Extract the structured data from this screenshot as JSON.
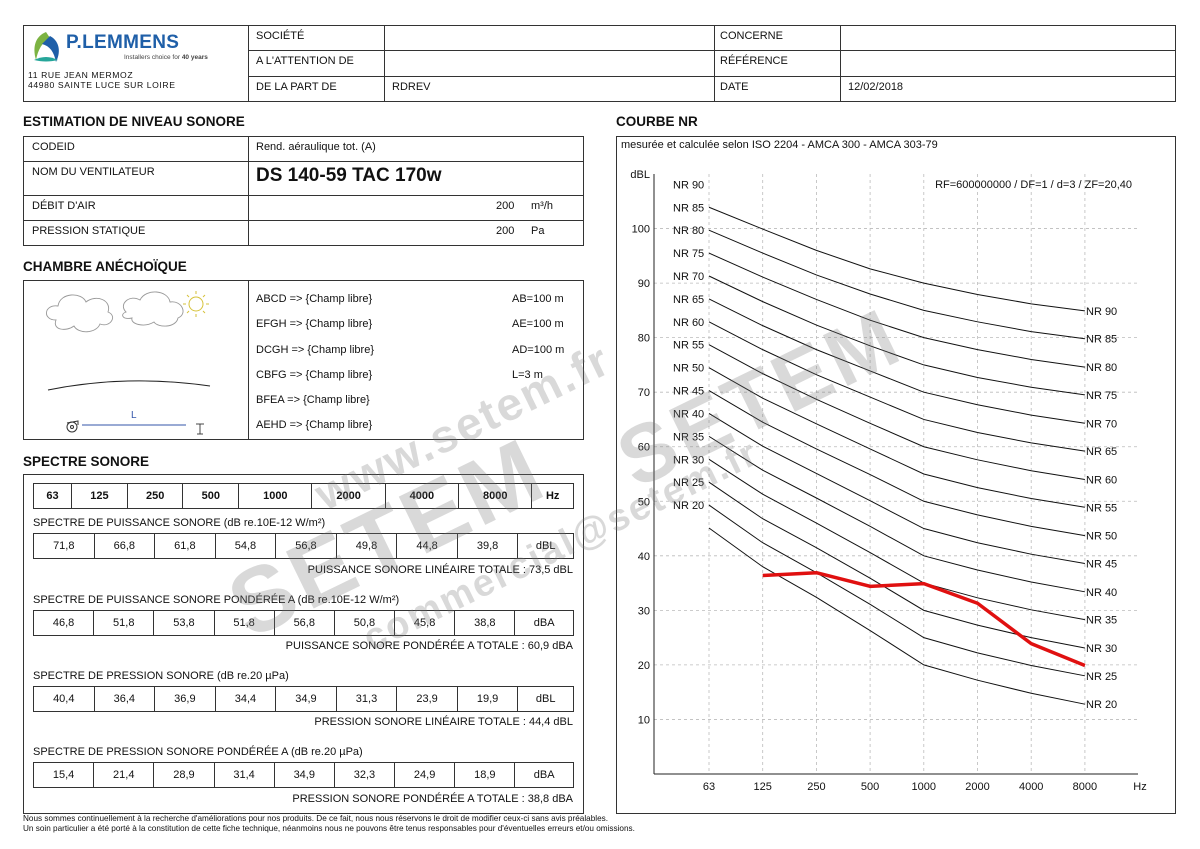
{
  "header": {
    "company_name": "P.LEMMENS",
    "tagline_prefix": "Installers choice for",
    "tagline_bold": "40 years",
    "address_line1": "11 RUE JEAN MERMOZ",
    "address_line2": "44980 SAINTE LUCE SUR LOIRE",
    "fields": {
      "societe_label": "SOCIÉTÉ",
      "societe_value": "",
      "attention_label": "A L'ATTENTION DE",
      "attention_value": "",
      "partde_label": "DE LA PART DE",
      "partde_value": "RDREV",
      "concerne_label": "CONCERNE",
      "concerne_value": "",
      "reference_label": "RÉFÉRENCE",
      "reference_value": "",
      "date_label": "DATE",
      "date_value": "12/02/2018"
    }
  },
  "estimation": {
    "title": "ESTIMATION DE NIVEAU SONORE",
    "codeid_label": "CODEID",
    "codeid_value": "Rend. aéraulique tot. (A)",
    "fan_label": "NOM DU VENTILATEUR",
    "fan_value": "DS 140-59 TAC 170w",
    "airflow_label": "DÉBIT D'AIR",
    "airflow_value": "200",
    "airflow_unit": "m³/h",
    "pressure_label": "PRESSION STATIQUE",
    "pressure_value": "200",
    "pressure_unit": "Pa"
  },
  "chamber": {
    "title": "CHAMBRE ANÉCHOÏQUE",
    "diagram_label": "L",
    "rows": [
      {
        "left": "ABCD => {Champ libre}",
        "right": "AB=100 m"
      },
      {
        "left": "EFGH => {Champ libre}",
        "right": "AE=100 m"
      },
      {
        "left": "DCGH => {Champ libre}",
        "right": "AD=100 m"
      },
      {
        "left": "CBFG => {Champ libre}",
        "right": "L=3 m"
      },
      {
        "left": "BFEA => {Champ libre}",
        "right": ""
      },
      {
        "left": "AEHD => {Champ libre}",
        "right": ""
      }
    ]
  },
  "spectrum": {
    "title": "SPECTRE SONORE",
    "frequencies": [
      "63",
      "125",
      "250",
      "500",
      "1000",
      "2000",
      "4000",
      "8000",
      "Hz"
    ],
    "sections": [
      {
        "label": "SPECTRE DE PUISSANCE SONORE  (dB re.10E-12 W/m²)",
        "values": [
          "71,8",
          "66,8",
          "61,8",
          "54,8",
          "56,8",
          "49,8",
          "44,8",
          "39,8",
          "dBL"
        ],
        "total": "PUISSANCE SONORE LINÉAIRE TOTALE : 73,5 dBL"
      },
      {
        "label": "SPECTRE DE PUISSANCE SONORE PONDÉRÉE A  (dB re.10E-12 W/m²)",
        "values": [
          "46,8",
          "51,8",
          "53,8",
          "51,8",
          "56,8",
          "50,8",
          "45,8",
          "38,8",
          "dBA"
        ],
        "total": "PUISSANCE SONORE PONDÉRÉE A TOTALE : 60,9 dBA"
      },
      {
        "label": "SPECTRE DE PRESSION SONORE  (dB re.20 µPa)",
        "values": [
          "40,4",
          "36,4",
          "36,9",
          "34,4",
          "34,9",
          "31,3",
          "23,9",
          "19,9",
          "dBL"
        ],
        "total": "PRESSION SONORE LINÉAIRE TOTALE : 44,4 dBL"
      },
      {
        "label": "SPECTRE DE PRESSION SONORE PONDÉRÉE A  (dB re.20 µPa)",
        "values": [
          "15,4",
          "21,4",
          "28,9",
          "31,4",
          "34,9",
          "32,3",
          "24,9",
          "18,9",
          "dBA"
        ],
        "total": "PRESSION SONORE PONDÉRÉE A TOTALE : 38,8 dBA"
      }
    ]
  },
  "nr_curve": {
    "title": "COURBE NR",
    "subtitle": "mesurée et calculée selon ISO 2204 - AMCA 300 - AMCA 303-79"
  },
  "chart_data": {
    "type": "line",
    "ylabel": "dBL",
    "xlabel": "Hz",
    "ylim": [
      0,
      110
    ],
    "categories": [
      "63",
      "125",
      "250",
      "500",
      "1000",
      "2000",
      "4000",
      "8000"
    ],
    "yticks": [
      10,
      20,
      30,
      40,
      50,
      60,
      70,
      80,
      90,
      100
    ],
    "annotation": "RF=600000000  /  DF=1  /  d=3  /  ZF=20,40",
    "nr_curves": [
      {
        "name": "NR 90",
        "values": [
          103.9,
          99.9,
          96.0,
          92.6,
          90.0,
          87.9,
          86.2,
          84.9
        ]
      },
      {
        "name": "NR 85",
        "values": [
          99.7,
          95.5,
          91.5,
          88.0,
          85.0,
          82.9,
          81.1,
          79.8
        ]
      },
      {
        "name": "NR 80",
        "values": [
          95.5,
          91.1,
          87.0,
          83.2,
          80.0,
          77.8,
          76.0,
          74.6
        ]
      },
      {
        "name": "NR 75",
        "values": [
          91.3,
          86.6,
          82.3,
          78.5,
          75.0,
          72.7,
          70.9,
          69.5
        ]
      },
      {
        "name": "NR 70",
        "values": [
          87.1,
          82.2,
          77.8,
          73.9,
          70.0,
          67.7,
          65.8,
          64.3
        ]
      },
      {
        "name": "NR 65",
        "values": [
          82.9,
          77.8,
          73.2,
          69.1,
          65.0,
          62.6,
          60.7,
          59.2
        ]
      },
      {
        "name": "NR 60",
        "values": [
          78.7,
          73.4,
          68.7,
          64.3,
          60.0,
          57.6,
          55.6,
          54.0
        ]
      },
      {
        "name": "NR 55",
        "values": [
          74.5,
          68.9,
          64.2,
          59.6,
          55.0,
          52.5,
          50.5,
          48.9
        ]
      },
      {
        "name": "NR 50",
        "values": [
          70.3,
          64.5,
          59.6,
          54.9,
          50.0,
          47.5,
          45.4,
          43.7
        ]
      },
      {
        "name": "NR 45",
        "values": [
          66.1,
          60.1,
          55.1,
          50.1,
          45.0,
          42.4,
          40.3,
          38.6
        ]
      },
      {
        "name": "NR 40",
        "values": [
          61.9,
          55.7,
          50.6,
          45.4,
          40.0,
          37.4,
          35.2,
          33.4
        ]
      },
      {
        "name": "NR 35",
        "values": [
          57.7,
          51.3,
          46.0,
          40.6,
          35.0,
          32.3,
          30.1,
          28.3
        ]
      },
      {
        "name": "NR 30",
        "values": [
          53.5,
          46.8,
          41.5,
          35.9,
          30.0,
          27.3,
          25.0,
          23.1
        ]
      },
      {
        "name": "NR 25",
        "values": [
          49.3,
          42.4,
          36.9,
          31.1,
          25.0,
          22.2,
          19.9,
          18.0
        ]
      },
      {
        "name": "NR 20",
        "values": [
          45.1,
          38.0,
          32.4,
          26.3,
          20.0,
          17.2,
          14.8,
          12.8
        ]
      }
    ],
    "series": [
      {
        "name": "Spectre de pression sonore",
        "color": "#e01010",
        "values": [
          null,
          36.4,
          36.9,
          34.4,
          34.9,
          31.3,
          23.9,
          19.9
        ]
      }
    ]
  },
  "footer": {
    "line1": "Nous sommes continuellement à la recherche d'améliorations pour nos produits.  De ce fait, nous nous réservons le droit de modifier ceux-ci sans avis préalables.",
    "line2": "Un soin particulier a été porté à la constitution de cette fiche technique,  néanmoins nous ne pouvons être tenus responsables pour d'éventuelles erreurs et/ou omissions."
  },
  "watermarks": {
    "site1": "www.setem.fr",
    "brand": "SETEM",
    "site2": "commercial@setem.fr"
  },
  "colors": {
    "brand_blue": "#1f5fa8",
    "logo_green": "#7cb342",
    "curve_red": "#e01010"
  }
}
